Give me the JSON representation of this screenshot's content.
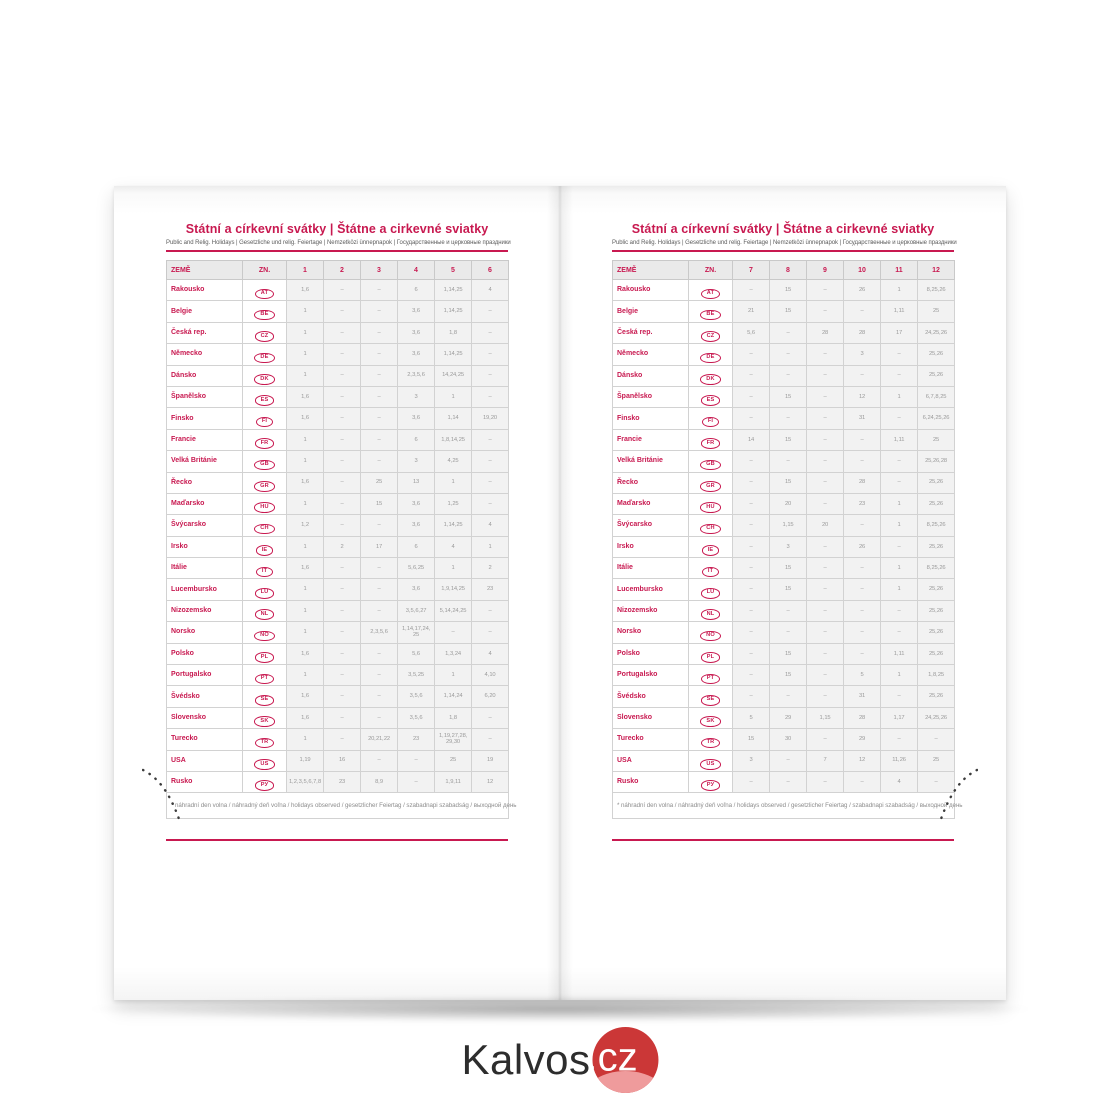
{
  "title": "Státní a církevní svátky | Štátne a cirkevné sviatky",
  "subtitle": "Public and Relig. Holidays | Gesetzliche und relig. Feiertage | Nemzetközi ünnepnapok | Государственные и церковные праздники",
  "footnote": "* náhradní den volna / náhradný deň voľna / holidays observed / gesetzlicher Feiertag / szabadnapi szabadság / выходной день",
  "table": {
    "country_header": "ZEMĚ",
    "code_header": "ZN.",
    "left_months": [
      "1",
      "2",
      "3",
      "4",
      "5",
      "6"
    ],
    "right_months": [
      "7",
      "8",
      "9",
      "10",
      "11",
      "12"
    ]
  },
  "countries": [
    {
      "name": "Rakousko",
      "code": "AT",
      "left": [
        "1, 6",
        "–",
        "–",
        "6",
        "1, 14, 25",
        "4"
      ],
      "right": [
        "–",
        "15",
        "–",
        "26",
        "1",
        "8, 25, 26"
      ]
    },
    {
      "name": "Belgie",
      "code": "BE",
      "left": [
        "1",
        "–",
        "–",
        "3, 6",
        "1, 14, 25",
        "–"
      ],
      "right": [
        "21",
        "15",
        "–",
        "–",
        "1, 11",
        "25"
      ]
    },
    {
      "name": "Česká rep.",
      "code": "CZ",
      "left": [
        "1",
        "–",
        "–",
        "3, 6",
        "1, 8",
        "–"
      ],
      "right": [
        "5, 6",
        "–",
        "28",
        "28",
        "17",
        "24, 25, 26"
      ]
    },
    {
      "name": "Německo",
      "code": "DE",
      "left": [
        "1",
        "–",
        "–",
        "3, 6",
        "1, 14, 25",
        "–"
      ],
      "right": [
        "–",
        "–",
        "–",
        "3",
        "–",
        "25, 26"
      ]
    },
    {
      "name": "Dánsko",
      "code": "DK",
      "left": [
        "1",
        "–",
        "–",
        "2, 3, 5, 6",
        "14, 24, 25",
        "–"
      ],
      "right": [
        "–",
        "–",
        "–",
        "–",
        "–",
        "25, 26"
      ]
    },
    {
      "name": "Španělsko",
      "code": "ES",
      "left": [
        "1, 6",
        "–",
        "–",
        "3",
        "1",
        "–"
      ],
      "right": [
        "–",
        "15",
        "–",
        "12",
        "1",
        "6, 7, 8, 25"
      ]
    },
    {
      "name": "Finsko",
      "code": "FI",
      "left": [
        "1, 6",
        "–",
        "–",
        "3, 6",
        "1, 14",
        "19, 20"
      ],
      "right": [
        "–",
        "–",
        "–",
        "31",
        "–",
        "6, 24, 25, 26"
      ]
    },
    {
      "name": "Francie",
      "code": "FR",
      "left": [
        "1",
        "–",
        "–",
        "6",
        "1, 8, 14, 25",
        "–"
      ],
      "right": [
        "14",
        "15",
        "–",
        "–",
        "1, 11",
        "25"
      ]
    },
    {
      "name": "Velká Británie",
      "code": "GB",
      "left": [
        "1",
        "–",
        "–",
        "3",
        "4, 25",
        "–"
      ],
      "right": [
        "–",
        "–",
        "–",
        "–",
        "–",
        "25, 26, 28"
      ]
    },
    {
      "name": "Řecko",
      "code": "GR",
      "left": [
        "1, 6",
        "–",
        "25",
        "13",
        "1",
        "–"
      ],
      "right": [
        "–",
        "15",
        "–",
        "28",
        "–",
        "25, 26"
      ]
    },
    {
      "name": "Maďarsko",
      "code": "HU",
      "left": [
        "1",
        "–",
        "15",
        "3, 6",
        "1, 25",
        "–"
      ],
      "right": [
        "–",
        "20",
        "–",
        "23",
        "1",
        "25, 26"
      ]
    },
    {
      "name": "Švýcarsko",
      "code": "CH",
      "left": [
        "1, 2",
        "–",
        "–",
        "3, 6",
        "1, 14, 25",
        "4"
      ],
      "right": [
        "–",
        "1, 15",
        "20",
        "–",
        "1",
        "8, 25, 26"
      ]
    },
    {
      "name": "Irsko",
      "code": "IE",
      "left": [
        "1",
        "2",
        "17",
        "6",
        "4",
        "1"
      ],
      "right": [
        "–",
        "3",
        "–",
        "26",
        "–",
        "25, 26"
      ]
    },
    {
      "name": "Itálie",
      "code": "IT",
      "left": [
        "1, 6",
        "–",
        "–",
        "5, 6, 25",
        "1",
        "2"
      ],
      "right": [
        "–",
        "15",
        "–",
        "–",
        "1",
        "8, 25, 26"
      ]
    },
    {
      "name": "Lucembursko",
      "code": "LU",
      "left": [
        "1",
        "–",
        "–",
        "3, 6",
        "1, 9, 14, 25",
        "23"
      ],
      "right": [
        "–",
        "15",
        "–",
        "–",
        "1",
        "25, 26"
      ]
    },
    {
      "name": "Nizozemsko",
      "code": "NL",
      "left": [
        "1",
        "–",
        "–",
        "3, 5, 6, 27",
        "5, 14, 24, 25",
        "–"
      ],
      "right": [
        "–",
        "–",
        "–",
        "–",
        "–",
        "25, 26"
      ]
    },
    {
      "name": "Norsko",
      "code": "NO",
      "left": [
        "1",
        "–",
        "2, 3, 5, 6",
        "1, 14, 17, 24, 25",
        "–",
        "–"
      ],
      "right": [
        "–",
        "–",
        "–",
        "–",
        "–",
        "25, 26"
      ]
    },
    {
      "name": "Polsko",
      "code": "PL",
      "left": [
        "1, 6",
        "–",
        "–",
        "5, 6",
        "1, 3, 24",
        "4"
      ],
      "right": [
        "–",
        "15",
        "–",
        "–",
        "1, 11",
        "25, 26"
      ]
    },
    {
      "name": "Portugalsko",
      "code": "PT",
      "left": [
        "1",
        "–",
        "–",
        "3, 5, 25",
        "1",
        "4, 10"
      ],
      "right": [
        "–",
        "15",
        "–",
        "5",
        "1",
        "1, 8, 25"
      ]
    },
    {
      "name": "Švédsko",
      "code": "SE",
      "left": [
        "1, 6",
        "–",
        "–",
        "3, 5, 6",
        "1, 14, 24",
        "6, 20"
      ],
      "right": [
        "–",
        "–",
        "–",
        "31",
        "–",
        "25, 26"
      ]
    },
    {
      "name": "Slovensko",
      "code": "SK",
      "left": [
        "1, 6",
        "–",
        "–",
        "3, 5, 6",
        "1, 8",
        "–"
      ],
      "right": [
        "5",
        "29",
        "1, 15",
        "28",
        "1, 17",
        "24, 25, 26"
      ]
    },
    {
      "name": "Turecko",
      "code": "TR",
      "left": [
        "1",
        "–",
        "20, 21, 22",
        "23",
        "1, 19, 27, 28, 29, 30",
        "–"
      ],
      "right": [
        "15",
        "30",
        "–",
        "29",
        "–",
        "–"
      ]
    },
    {
      "name": "USA",
      "code": "US",
      "left": [
        "1, 19",
        "16",
        "–",
        "–",
        "25",
        "19"
      ],
      "right": [
        "3",
        "–",
        "7",
        "12",
        "11, 26",
        "25"
      ]
    },
    {
      "name": "Rusko",
      "code": "РУ",
      "left": [
        "1, 2, 3, 5, 6, 7, 8",
        "23",
        "8, 9",
        "–",
        "1, 9, 11",
        "12"
      ],
      "right": [
        "–",
        "–",
        "–",
        "–",
        "4",
        "–"
      ]
    }
  ],
  "logo": {
    "name": "Kalvos",
    "tld": ".cz"
  },
  "colors": {
    "accent": "#c81950",
    "logo_red": "#cb3737",
    "logo_red_light": "#ef9b9c",
    "cell_text": "#9a9a9a"
  }
}
